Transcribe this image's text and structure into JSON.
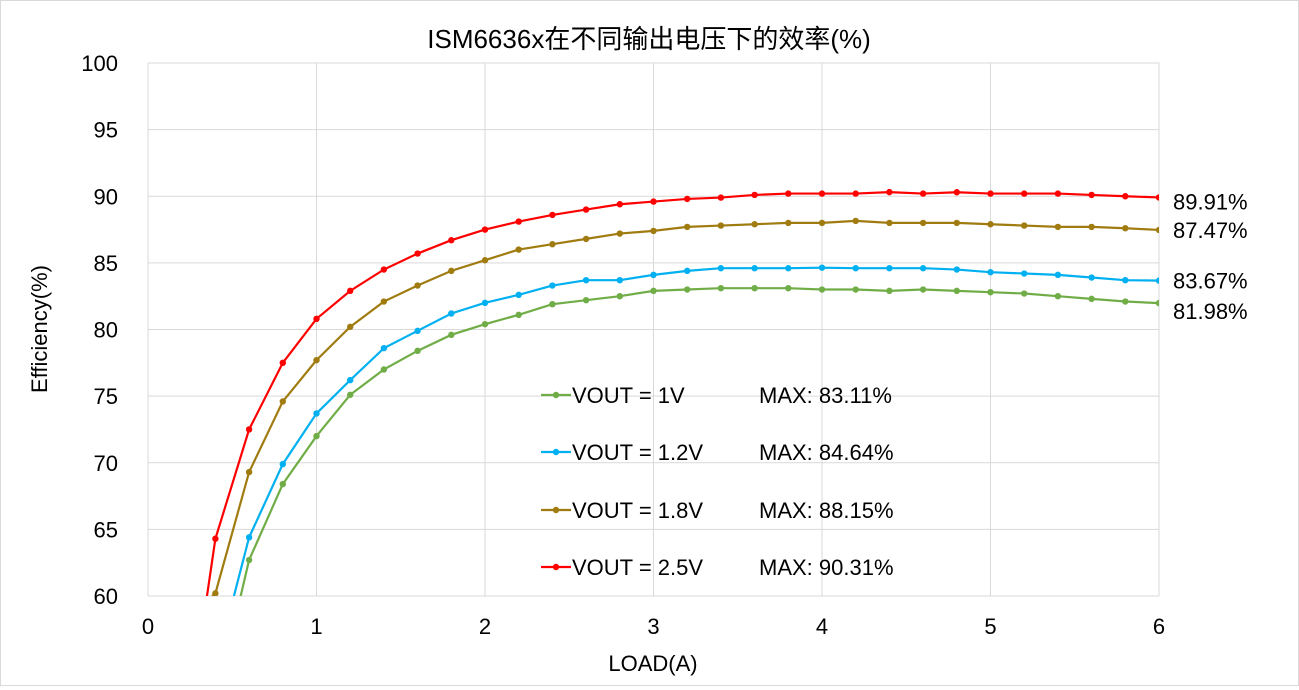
{
  "chart_data": {
    "type": "line",
    "title": "ISM6636x在不同输出电压下的效率(%)",
    "xlabel": "LOAD(A)",
    "ylabel": "Efficiency(%)",
    "xlim": [
      0,
      6
    ],
    "ylim": [
      60,
      100
    ],
    "xticks": [
      "0",
      "1",
      "2",
      "3",
      "4",
      "5",
      "6"
    ],
    "yticks": [
      "60",
      "65",
      "70",
      "75",
      "80",
      "85",
      "90",
      "95",
      "100"
    ],
    "grid": true,
    "legend_position": "center-bottom",
    "x": [
      0.4,
      0.6,
      0.8,
      1.0,
      1.2,
      1.4,
      1.6,
      1.8,
      2.0,
      2.2,
      2.4,
      2.6,
      2.8,
      3.0,
      3.2,
      3.4,
      3.6,
      3.8,
      4.0,
      4.2,
      4.4,
      4.6,
      4.8,
      5.0,
      5.2,
      5.4,
      5.6,
      5.8,
      6.0
    ],
    "series": [
      {
        "name": "VOUT = 1V",
        "max_label": "MAX: 83.11%",
        "end_label": "81.98%",
        "color": "#70ad47",
        "lead_in": [
          [
            0.55,
            60
          ],
          [
            0.6,
            62.7
          ]
        ],
        "values": [
          null,
          62.7,
          68.4,
          72.0,
          75.1,
          77.0,
          78.4,
          79.6,
          80.4,
          81.1,
          81.9,
          82.2,
          82.5,
          82.9,
          83.0,
          83.1,
          83.1,
          83.1,
          83.0,
          83.0,
          82.9,
          83.0,
          82.9,
          82.8,
          82.7,
          82.5,
          82.3,
          82.1,
          81.98
        ]
      },
      {
        "name": "VOUT = 1.2V",
        "max_label": "MAX: 84.64%",
        "end_label": "83.67%",
        "color": "#00b0f0",
        "lead_in": [
          [
            0.51,
            60
          ],
          [
            0.6,
            64.4
          ]
        ],
        "values": [
          null,
          64.4,
          69.9,
          73.7,
          76.2,
          78.6,
          79.9,
          81.2,
          82.0,
          82.6,
          83.3,
          83.7,
          83.7,
          84.1,
          84.4,
          84.6,
          84.6,
          84.6,
          84.64,
          84.6,
          84.6,
          84.6,
          84.5,
          84.3,
          84.2,
          84.1,
          83.9,
          83.7,
          83.67
        ]
      },
      {
        "name": "VOUT = 1.8V",
        "max_label": "MAX: 88.15%",
        "end_label": "87.47%",
        "color": "#a07b10",
        "lead_in": [
          [
            0.38,
            60
          ],
          [
            0.4,
            60.2
          ]
        ],
        "values": [
          60.2,
          69.3,
          74.6,
          77.7,
          80.2,
          82.1,
          83.3,
          84.4,
          85.2,
          86.0,
          86.4,
          86.8,
          87.2,
          87.4,
          87.7,
          87.8,
          87.9,
          88.0,
          88.0,
          88.15,
          88.0,
          88.0,
          88.0,
          87.9,
          87.8,
          87.7,
          87.7,
          87.6,
          87.47
        ]
      },
      {
        "name": "VOUT = 2.5V",
        "max_label": "MAX: 90.31%",
        "end_label": "89.91%",
        "color": "#ff0000",
        "lead_in": [
          [
            0.35,
            60
          ],
          [
            0.4,
            64.3
          ]
        ],
        "values": [
          64.3,
          72.5,
          77.5,
          80.8,
          82.9,
          84.5,
          85.7,
          86.7,
          87.5,
          88.1,
          88.6,
          89.0,
          89.4,
          89.6,
          89.8,
          89.9,
          90.1,
          90.2,
          90.2,
          90.2,
          90.31,
          90.2,
          90.3,
          90.2,
          90.2,
          90.2,
          90.1,
          90.0,
          89.91
        ]
      }
    ]
  }
}
